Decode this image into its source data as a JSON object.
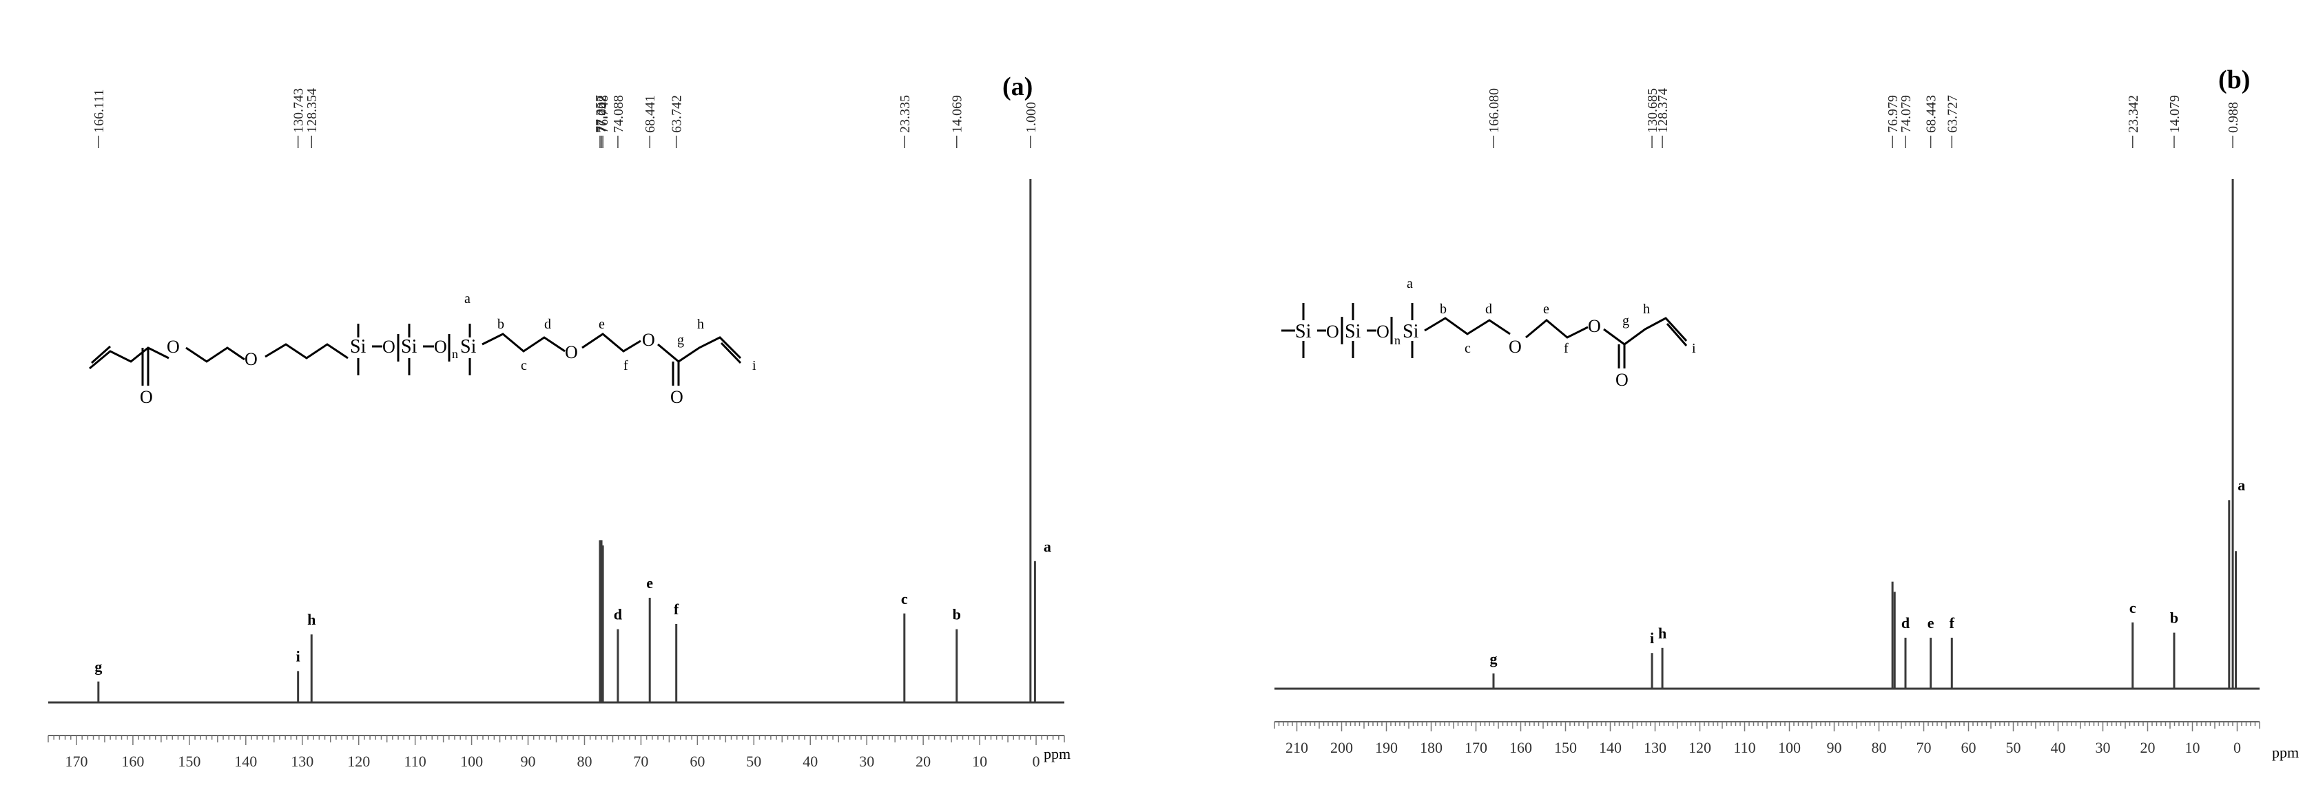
{
  "chart_data": [
    {
      "type": "line",
      "panel_label": "(a)",
      "x_unit_label": "ppm",
      "x_axis": {
        "range": [
          175,
          -5
        ],
        "reversed": true,
        "ticks": [
          170,
          160,
          150,
          140,
          130,
          120,
          110,
          100,
          90,
          80,
          70,
          60,
          50,
          40,
          30,
          20,
          10,
          0
        ]
      },
      "peak_list": [
        "166.111",
        "130.743",
        "128.354",
        "77.257",
        "77.002",
        "76.748",
        "74.088",
        "68.441",
        "63.742",
        "23.335",
        "14.069",
        "1.000"
      ],
      "peaks": [
        {
          "x": 166.111,
          "y": 0.04,
          "label": "g"
        },
        {
          "x": 130.743,
          "y": 0.06,
          "label": "i"
        },
        {
          "x": 128.354,
          "y": 0.13,
          "label": "h"
        },
        {
          "x": 77.257,
          "y": 0.31,
          "label": ""
        },
        {
          "x": 77.002,
          "y": 0.31,
          "label": ""
        },
        {
          "x": 76.748,
          "y": 0.3,
          "label": ""
        },
        {
          "x": 74.088,
          "y": 0.14,
          "label": "d"
        },
        {
          "x": 68.441,
          "y": 0.2,
          "label": "e"
        },
        {
          "x": 63.742,
          "y": 0.15,
          "label": "f"
        },
        {
          "x": 23.335,
          "y": 0.17,
          "label": "c"
        },
        {
          "x": 14.069,
          "y": 0.14,
          "label": "b"
        },
        {
          "x": 1.0,
          "y": 1.0,
          "label": ""
        },
        {
          "x": 0.2,
          "y": 0.27,
          "label": "a"
        }
      ],
      "structure": {
        "left_groups": [
          "Si",
          "O",
          "Si",
          "O",
          "n",
          "Si"
        ],
        "chain_letters": [
          "a",
          "b",
          "c",
          "d",
          "e",
          "f",
          "g",
          "h",
          "i"
        ]
      }
    },
    {
      "type": "line",
      "panel_label": "(b)",
      "x_unit_label": "ppm",
      "x_axis": {
        "range": [
          215,
          -5
        ],
        "reversed": true,
        "ticks": [
          210,
          200,
          190,
          180,
          170,
          160,
          150,
          140,
          130,
          120,
          110,
          100,
          90,
          80,
          70,
          60,
          50,
          40,
          30,
          20,
          10,
          0
        ]
      },
      "peak_list": [
        "166.080",
        "130.685",
        "128.374",
        "76.979",
        "74.079",
        "68.443",
        "63.727",
        "23.342",
        "14.079",
        "0.988"
      ],
      "peaks": [
        {
          "x": 166.08,
          "y": 0.03,
          "label": "g"
        },
        {
          "x": 130.685,
          "y": 0.07,
          "label": "i"
        },
        {
          "x": 128.374,
          "y": 0.08,
          "label": "h"
        },
        {
          "x": 76.979,
          "y": 0.21,
          "label": ""
        },
        {
          "x": 76.5,
          "y": 0.19,
          "label": ""
        },
        {
          "x": 74.079,
          "y": 0.1,
          "label": "d"
        },
        {
          "x": 68.443,
          "y": 0.1,
          "label": "e"
        },
        {
          "x": 63.727,
          "y": 0.1,
          "label": "f"
        },
        {
          "x": 23.342,
          "y": 0.13,
          "label": "c"
        },
        {
          "x": 14.079,
          "y": 0.11,
          "label": "b"
        },
        {
          "x": 0.988,
          "y": 1.0,
          "label": ""
        },
        {
          "x": 1.8,
          "y": 0.37,
          "label": "a"
        },
        {
          "x": 0.3,
          "y": 0.27,
          "label": ""
        }
      ],
      "structure": {
        "left_groups": [
          "Si",
          "O",
          "Si",
          "O",
          "n",
          "Si"
        ],
        "chain_letters": [
          "a",
          "b",
          "c",
          "d",
          "e",
          "f",
          "g",
          "h",
          "i"
        ]
      }
    }
  ],
  "colors": {
    "line": "#3a3a3a",
    "text": "#000000"
  }
}
